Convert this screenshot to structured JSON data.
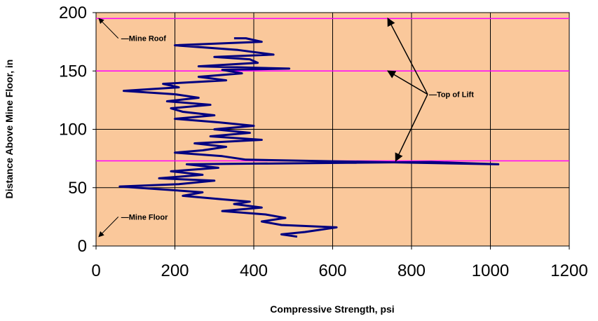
{
  "chart_data": {
    "type": "line",
    "title": "",
    "xlabel": "Compressive Strength, psi",
    "ylabel": "Distance Above Mine Floor, in",
    "xlim": [
      0,
      1200
    ],
    "ylim": [
      0,
      200
    ],
    "x_ticks": [
      0,
      200,
      400,
      600,
      800,
      1000,
      1200
    ],
    "y_ticks": [
      0,
      50,
      100,
      150,
      200
    ],
    "grid": true,
    "plot_background": "#FAC89B",
    "grid_color": "#000000",
    "series": [
      {
        "color": "#000080",
        "points": [
          [
            510,
            8
          ],
          [
            470,
            10
          ],
          [
            530,
            12
          ],
          [
            610,
            16
          ],
          [
            470,
            18
          ],
          [
            420,
            21
          ],
          [
            480,
            24
          ],
          [
            430,
            27
          ],
          [
            320,
            30
          ],
          [
            420,
            33
          ],
          [
            350,
            36
          ],
          [
            390,
            38
          ],
          [
            320,
            40
          ],
          [
            220,
            43
          ],
          [
            270,
            46
          ],
          [
            190,
            48
          ],
          [
            60,
            51
          ],
          [
            210,
            53
          ],
          [
            300,
            56
          ],
          [
            160,
            58
          ],
          [
            270,
            61
          ],
          [
            190,
            64
          ],
          [
            310,
            67
          ],
          [
            230,
            70
          ],
          [
            850,
            72
          ],
          [
            1020,
            70
          ],
          [
            380,
            74
          ],
          [
            320,
            77
          ],
          [
            200,
            80
          ],
          [
            270,
            82
          ],
          [
            330,
            85
          ],
          [
            250,
            88
          ],
          [
            420,
            91
          ],
          [
            290,
            94
          ],
          [
            390,
            97
          ],
          [
            300,
            100
          ],
          [
            400,
            103
          ],
          [
            310,
            106
          ],
          [
            200,
            109
          ],
          [
            300,
            112
          ],
          [
            220,
            115
          ],
          [
            190,
            118
          ],
          [
            290,
            121
          ],
          [
            180,
            124
          ],
          [
            260,
            127
          ],
          [
            200,
            130
          ],
          [
            70,
            133
          ],
          [
            210,
            136
          ],
          [
            170,
            139
          ],
          [
            330,
            142
          ],
          [
            260,
            145
          ],
          [
            370,
            148
          ],
          [
            320,
            151
          ],
          [
            490,
            152
          ],
          [
            260,
            154
          ],
          [
            410,
            157
          ],
          [
            390,
            160
          ],
          [
            300,
            162
          ],
          [
            450,
            164
          ],
          [
            360,
            168
          ],
          [
            200,
            172
          ],
          [
            420,
            175
          ],
          [
            380,
            178
          ],
          [
            350,
            178
          ]
        ]
      }
    ],
    "reference_lines": [
      {
        "y": 195,
        "color": "#FF00FF"
      },
      {
        "y": 150,
        "color": "#FF00FF"
      },
      {
        "y": 73,
        "color": "#FF00FF"
      }
    ],
    "annotations": [
      {
        "text": "Mine Roof",
        "target": [
          0,
          195
        ],
        "label_pos": [
          60,
          178
        ]
      },
      {
        "text": "Mine Floor",
        "target": [
          0,
          8
        ],
        "label_pos": [
          60,
          25
        ]
      },
      {
        "text": "Top of Lift",
        "targets": [
          [
            740,
            195
          ],
          [
            740,
            150
          ],
          [
            760,
            73
          ]
        ],
        "label_pos": [
          855,
          130
        ]
      }
    ]
  }
}
